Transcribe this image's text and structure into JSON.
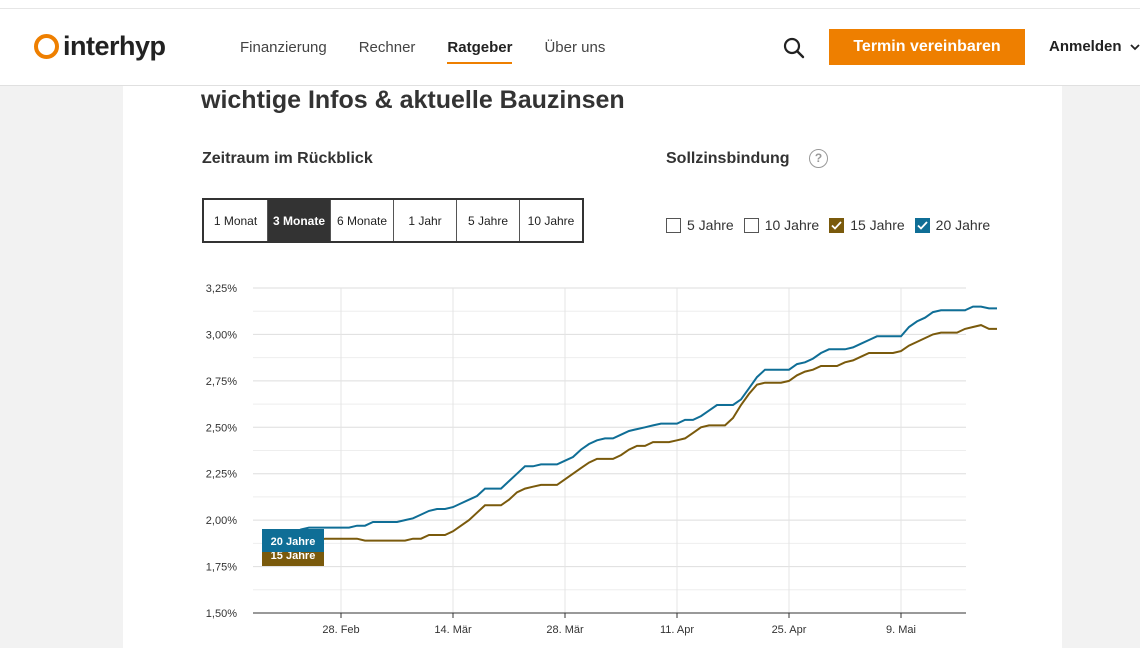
{
  "header": {
    "logo_text": "interhyp",
    "nav": [
      {
        "label": "Finanzierung",
        "active": false
      },
      {
        "label": "Rechner",
        "active": false
      },
      {
        "label": "Ratgeber",
        "active": true
      },
      {
        "label": "Über uns",
        "active": false
      }
    ],
    "cta_label": "Termin vereinbaren",
    "login_label": "Anmelden"
  },
  "content": {
    "heading": "wichtige Infos & aktuelle Bauzinsen",
    "period_label": "Zeitraum im Rückblick",
    "fixation_label": "Sollzinsbindung",
    "help_symbol": "?",
    "periods": [
      {
        "label": "1 Monat",
        "active": false
      },
      {
        "label": "3 Monate",
        "active": true
      },
      {
        "label": "6 Monate",
        "active": false
      },
      {
        "label": "1 Jahr",
        "active": false
      },
      {
        "label": "5 Jahre",
        "active": false
      },
      {
        "label": "10 Jahre",
        "active": false
      }
    ],
    "checkboxes": [
      {
        "label": "5 Jahre",
        "checked": false
      },
      {
        "label": "10 Jahre",
        "checked": false
      },
      {
        "label": "15 Jahre",
        "checked": true,
        "color": "#7a5a0c"
      },
      {
        "label": "20 Jahre",
        "checked": true,
        "color": "#0f6e96"
      }
    ]
  },
  "chart_data": {
    "type": "line",
    "y_ticks": [
      "3,25%",
      "3,00%",
      "2,75%",
      "2,50%",
      "2,25%",
      "2,00%",
      "1,75%",
      "1,50%"
    ],
    "ylim": [
      1.5,
      3.25
    ],
    "x_ticks": [
      {
        "label": "28. Feb",
        "day": 11
      },
      {
        "label": "14. Mär",
        "day": 25
      },
      {
        "label": "28. Mär",
        "day": 39
      },
      {
        "label": "11. Apr",
        "day": 53
      },
      {
        "label": "25. Apr",
        "day": 67
      },
      {
        "label": "9. Mai",
        "day": 81
      }
    ],
    "x_days_per_tick": 14,
    "series": [
      {
        "name": "20 Jahre",
        "color": "#0f6e96",
        "points": [
          [
            3,
            1.87
          ],
          [
            4,
            1.89
          ],
          [
            5,
            1.93
          ],
          [
            6,
            1.95
          ],
          [
            7,
            1.96
          ],
          [
            8,
            1.96
          ],
          [
            9,
            1.96
          ],
          [
            10,
            1.96
          ],
          [
            11,
            1.96
          ],
          [
            12,
            1.96
          ],
          [
            13,
            1.97
          ],
          [
            14,
            1.97
          ],
          [
            15,
            1.99
          ],
          [
            16,
            1.99
          ],
          [
            17,
            1.99
          ],
          [
            18,
            1.99
          ],
          [
            19,
            2.0
          ],
          [
            20,
            2.01
          ],
          [
            21,
            2.03
          ],
          [
            22,
            2.05
          ],
          [
            23,
            2.06
          ],
          [
            24,
            2.06
          ],
          [
            25,
            2.07
          ],
          [
            26,
            2.09
          ],
          [
            27,
            2.11
          ],
          [
            28,
            2.13
          ],
          [
            29,
            2.17
          ],
          [
            30,
            2.17
          ],
          [
            31,
            2.17
          ],
          [
            32,
            2.21
          ],
          [
            33,
            2.25
          ],
          [
            34,
            2.29
          ],
          [
            35,
            2.29
          ],
          [
            36,
            2.3
          ],
          [
            37,
            2.3
          ],
          [
            38,
            2.3
          ],
          [
            39,
            2.32
          ],
          [
            40,
            2.34
          ],
          [
            41,
            2.38
          ],
          [
            42,
            2.41
          ],
          [
            43,
            2.43
          ],
          [
            44,
            2.44
          ],
          [
            45,
            2.44
          ],
          [
            46,
            2.46
          ],
          [
            47,
            2.48
          ],
          [
            48,
            2.49
          ],
          [
            49,
            2.5
          ],
          [
            50,
            2.51
          ],
          [
            51,
            2.52
          ],
          [
            52,
            2.52
          ],
          [
            53,
            2.52
          ],
          [
            54,
            2.54
          ],
          [
            55,
            2.54
          ],
          [
            56,
            2.56
          ],
          [
            57,
            2.59
          ],
          [
            58,
            2.62
          ],
          [
            59,
            2.62
          ],
          [
            60,
            2.62
          ],
          [
            61,
            2.65
          ],
          [
            62,
            2.71
          ],
          [
            63,
            2.77
          ],
          [
            64,
            2.81
          ],
          [
            65,
            2.81
          ],
          [
            66,
            2.81
          ],
          [
            67,
            2.81
          ],
          [
            68,
            2.84
          ],
          [
            69,
            2.85
          ],
          [
            70,
            2.87
          ],
          [
            71,
            2.9
          ],
          [
            72,
            2.92
          ],
          [
            73,
            2.92
          ],
          [
            74,
            2.92
          ],
          [
            75,
            2.93
          ],
          [
            76,
            2.95
          ],
          [
            77,
            2.97
          ],
          [
            78,
            2.99
          ],
          [
            79,
            2.99
          ],
          [
            80,
            2.99
          ],
          [
            81,
            2.99
          ],
          [
            82,
            3.04
          ],
          [
            83,
            3.07
          ],
          [
            84,
            3.09
          ],
          [
            85,
            3.12
          ],
          [
            86,
            3.13
          ],
          [
            87,
            3.13
          ],
          [
            88,
            3.13
          ],
          [
            89,
            3.13
          ],
          [
            90,
            3.15
          ],
          [
            91,
            3.15
          ],
          [
            92,
            3.14
          ],
          [
            93,
            3.14
          ]
        ]
      },
      {
        "name": "15 Jahre",
        "color": "#7a5a0c",
        "points": [
          [
            3,
            1.8
          ],
          [
            4,
            1.82
          ],
          [
            5,
            1.86
          ],
          [
            6,
            1.88
          ],
          [
            7,
            1.89
          ],
          [
            8,
            1.89
          ],
          [
            9,
            1.9
          ],
          [
            10,
            1.9
          ],
          [
            11,
            1.9
          ],
          [
            12,
            1.9
          ],
          [
            13,
            1.9
          ],
          [
            14,
            1.89
          ],
          [
            15,
            1.89
          ],
          [
            16,
            1.89
          ],
          [
            17,
            1.89
          ],
          [
            18,
            1.89
          ],
          [
            19,
            1.89
          ],
          [
            20,
            1.9
          ],
          [
            21,
            1.9
          ],
          [
            22,
            1.92
          ],
          [
            23,
            1.92
          ],
          [
            24,
            1.92
          ],
          [
            25,
            1.94
          ],
          [
            26,
            1.97
          ],
          [
            27,
            2.0
          ],
          [
            28,
            2.04
          ],
          [
            29,
            2.08
          ],
          [
            30,
            2.08
          ],
          [
            31,
            2.08
          ],
          [
            32,
            2.11
          ],
          [
            33,
            2.15
          ],
          [
            34,
            2.17
          ],
          [
            35,
            2.18
          ],
          [
            36,
            2.19
          ],
          [
            37,
            2.19
          ],
          [
            38,
            2.19
          ],
          [
            39,
            2.22
          ],
          [
            40,
            2.25
          ],
          [
            41,
            2.28
          ],
          [
            42,
            2.31
          ],
          [
            43,
            2.33
          ],
          [
            44,
            2.33
          ],
          [
            45,
            2.33
          ],
          [
            46,
            2.35
          ],
          [
            47,
            2.38
          ],
          [
            48,
            2.4
          ],
          [
            49,
            2.4
          ],
          [
            50,
            2.42
          ],
          [
            51,
            2.42
          ],
          [
            52,
            2.42
          ],
          [
            53,
            2.43
          ],
          [
            54,
            2.44
          ],
          [
            55,
            2.47
          ],
          [
            56,
            2.5
          ],
          [
            57,
            2.51
          ],
          [
            58,
            2.51
          ],
          [
            59,
            2.51
          ],
          [
            60,
            2.55
          ],
          [
            61,
            2.62
          ],
          [
            62,
            2.68
          ],
          [
            63,
            2.73
          ],
          [
            64,
            2.74
          ],
          [
            65,
            2.74
          ],
          [
            66,
            2.74
          ],
          [
            67,
            2.75
          ],
          [
            68,
            2.78
          ],
          [
            69,
            2.8
          ],
          [
            70,
            2.81
          ],
          [
            71,
            2.83
          ],
          [
            72,
            2.83
          ],
          [
            73,
            2.83
          ],
          [
            74,
            2.85
          ],
          [
            75,
            2.86
          ],
          [
            76,
            2.88
          ],
          [
            77,
            2.9
          ],
          [
            78,
            2.9
          ],
          [
            79,
            2.9
          ],
          [
            80,
            2.9
          ],
          [
            81,
            2.91
          ],
          [
            82,
            2.94
          ],
          [
            83,
            2.96
          ],
          [
            84,
            2.98
          ],
          [
            85,
            3.0
          ],
          [
            86,
            3.01
          ],
          [
            87,
            3.01
          ],
          [
            88,
            3.01
          ],
          [
            89,
            3.03
          ],
          [
            90,
            3.04
          ],
          [
            91,
            3.05
          ],
          [
            92,
            3.03
          ],
          [
            93,
            3.03
          ]
        ]
      }
    ],
    "start_labels": [
      {
        "text": "20 Jahre",
        "color": "#0f6e96"
      },
      {
        "text": "15 Jahre",
        "color": "#7a5a0c"
      }
    ]
  }
}
